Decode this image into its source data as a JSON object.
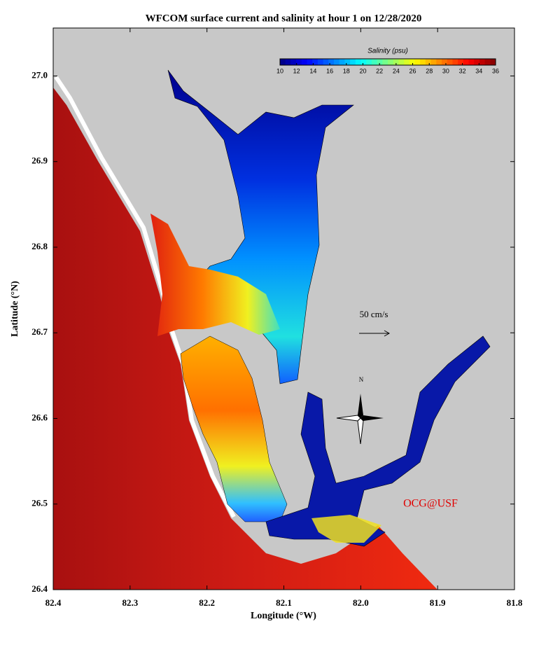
{
  "chart_data": {
    "type": "map",
    "title": "WFCOM surface current and salinity at hour 1 on 12/28/2020",
    "xlabel": "Longitude (°W)",
    "ylabel": "Latitude (°N)",
    "xlim": [
      82.4,
      81.8
    ],
    "ylim": [
      26.4,
      27.056
    ],
    "xticks": [
      82.4,
      82.3,
      82.2,
      82.1,
      {
        "value": 82.0,
        "label": "82.0"
      },
      81.9,
      81.8
    ],
    "yticks": [
      26.4,
      26.5,
      26.6,
      26.7,
      26.8,
      26.9,
      {
        "value": 27.0,
        "label": "27.0"
      }
    ],
    "colorbar": {
      "label": "Salinity (psu)",
      "lim": [
        10,
        36
      ],
      "ticks": [
        10,
        12,
        14,
        16,
        18,
        20,
        22,
        24,
        26,
        28,
        30,
        32,
        34,
        36
      ]
    },
    "scale_label": "50 cm/s",
    "compass_label": "N",
    "credit": "OCG@USF"
  }
}
